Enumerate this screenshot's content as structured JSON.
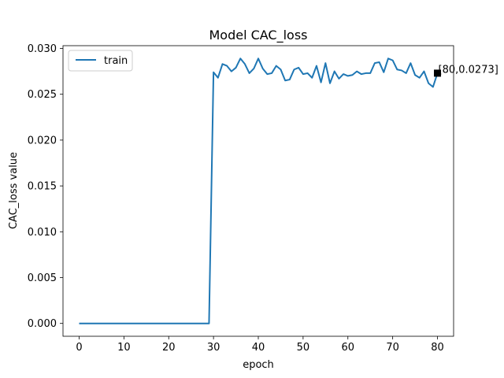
{
  "chart_data": {
    "type": "line",
    "title": "Model CAC_loss",
    "xlabel": "epoch",
    "ylabel": "CAC_loss value",
    "xlim": [
      -3.6,
      83.6
    ],
    "ylim": [
      -0.0014,
      0.0303
    ],
    "xticks": [
      0,
      10,
      20,
      30,
      40,
      50,
      60,
      70,
      80
    ],
    "yticks": [
      0.0,
      0.005,
      0.01,
      0.015,
      0.02,
      0.025,
      0.03
    ],
    "xtick_labels": [
      "0",
      "10",
      "20",
      "30",
      "40",
      "50",
      "60",
      "70",
      "80"
    ],
    "ytick_labels": [
      "0.000",
      "0.005",
      "0.010",
      "0.015",
      "0.020",
      "0.025",
      "0.030"
    ],
    "grid": false,
    "legend": "upper-left",
    "series": [
      {
        "name": "train",
        "color": "#1f77b4",
        "x": [
          0,
          1,
          2,
          3,
          4,
          5,
          6,
          7,
          8,
          9,
          10,
          11,
          12,
          13,
          14,
          15,
          16,
          17,
          18,
          19,
          20,
          21,
          22,
          23,
          24,
          25,
          26,
          27,
          28,
          29,
          30,
          31,
          32,
          33,
          34,
          35,
          36,
          37,
          38,
          39,
          40,
          41,
          42,
          43,
          44,
          45,
          46,
          47,
          48,
          49,
          50,
          51,
          52,
          53,
          54,
          55,
          56,
          57,
          58,
          59,
          60,
          61,
          62,
          63,
          64,
          65,
          66,
          67,
          68,
          69,
          70,
          71,
          72,
          73,
          74,
          75,
          76,
          77,
          78,
          79,
          80
        ],
        "values": [
          0,
          0,
          0,
          0,
          0,
          0,
          0,
          0,
          0,
          0,
          0,
          0,
          0,
          0,
          0,
          0,
          0,
          0,
          0,
          0,
          0,
          0,
          0,
          0,
          0,
          0,
          0,
          0,
          0,
          0,
          0.0274,
          0.0268,
          0.0283,
          0.0281,
          0.0275,
          0.0279,
          0.0289,
          0.0283,
          0.0273,
          0.0278,
          0.0289,
          0.0278,
          0.0272,
          0.0273,
          0.0281,
          0.0277,
          0.0265,
          0.0266,
          0.0277,
          0.0279,
          0.0272,
          0.0273,
          0.0268,
          0.0281,
          0.0263,
          0.0284,
          0.0262,
          0.0275,
          0.0267,
          0.0272,
          0.027,
          0.0271,
          0.0275,
          0.0272,
          0.0273,
          0.0273,
          0.0284,
          0.0285,
          0.0274,
          0.0289,
          0.0287,
          0.0277,
          0.0276,
          0.0273,
          0.0284,
          0.0271,
          0.0268,
          0.0275,
          0.0262,
          0.0258,
          0.0273
        ]
      }
    ],
    "annotation": {
      "x": 80,
      "y": 0.0273,
      "text": "[80,0.0273]",
      "marker_color": "#000000"
    }
  }
}
